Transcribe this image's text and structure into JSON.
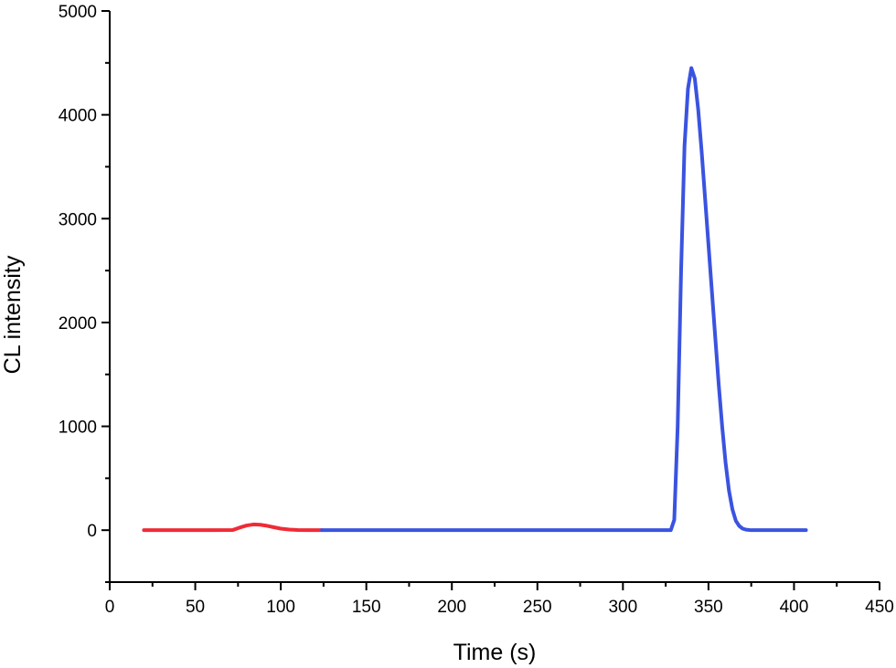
{
  "chart_data": {
    "type": "line",
    "title": "",
    "xlabel": "Time (s)",
    "ylabel": "CL intensity",
    "xlim": [
      0,
      450
    ],
    "ylim": [
      -500,
      5000
    ],
    "x_ticks": [
      0,
      50,
      100,
      150,
      200,
      250,
      300,
      350,
      400,
      450
    ],
    "y_ticks": [
      0,
      1000,
      2000,
      3000,
      4000,
      5000
    ],
    "x_minor_step": 25,
    "y_minor_step": 500,
    "grid": false,
    "legend": "none",
    "series": [
      {
        "color": "#ef2b36",
        "x": [
          20,
          40,
          60,
          72,
          76,
          80,
          84,
          88,
          92,
          96,
          100,
          105,
          110,
          115,
          120,
          124
        ],
        "y": [
          0,
          0,
          0,
          2,
          25,
          45,
          55,
          52,
          42,
          28,
          15,
          6,
          2,
          1,
          0,
          0
        ]
      },
      {
        "color": "#3a53e0",
        "x": [
          124,
          150,
          200,
          250,
          300,
          320,
          328,
          330,
          332,
          334,
          336,
          338,
          340,
          342,
          344,
          346,
          348,
          350,
          352,
          354,
          356,
          358,
          360,
          362,
          364,
          366,
          368,
          370,
          372,
          375,
          380,
          390,
          407
        ],
        "y": [
          0,
          0,
          0,
          0,
          0,
          0,
          0,
          100,
          1000,
          2500,
          3700,
          4250,
          4450,
          4350,
          4050,
          3650,
          3200,
          2750,
          2300,
          1850,
          1400,
          1000,
          650,
          380,
          200,
          90,
          40,
          15,
          5,
          0,
          0,
          0,
          0
        ]
      }
    ]
  }
}
